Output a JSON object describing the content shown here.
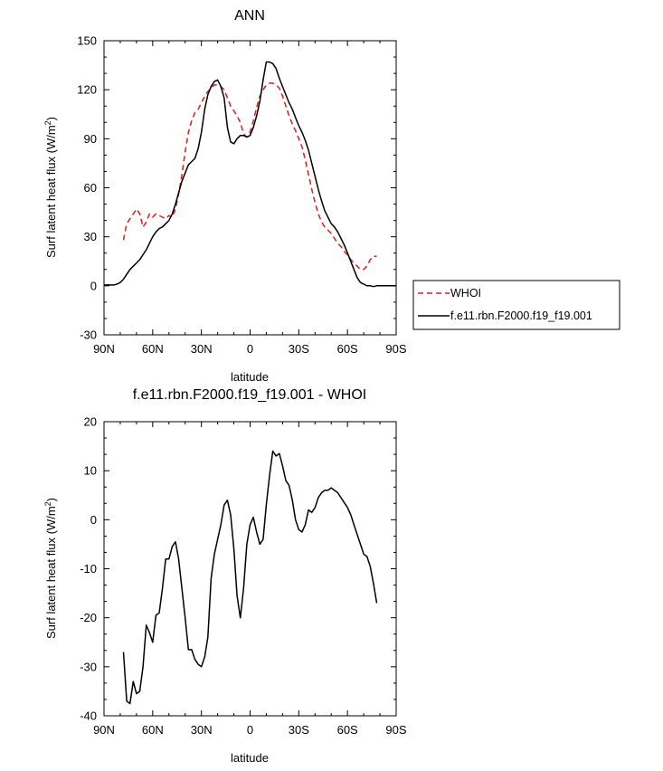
{
  "chart_data": [
    {
      "type": "line",
      "title": "ANN",
      "xlabel": "latitude",
      "ylabel": "Surf latent heat flux (W/m",
      "ylabel_sup": "2",
      "ylabel_tail": ")",
      "xlim": [
        90,
        -90
      ],
      "ylim": [
        -30,
        150
      ],
      "x_ticks": [
        90,
        60,
        30,
        0,
        -30,
        -60,
        -90
      ],
      "x_tick_labels": [
        "90N",
        "60N",
        "30N",
        "0",
        "30S",
        "60S",
        "90S"
      ],
      "y_ticks": [
        -30,
        0,
        30,
        60,
        90,
        120,
        150
      ],
      "y_tick_labels": [
        "-30",
        "0",
        "30",
        "60",
        "90",
        "120",
        "150"
      ],
      "legend": {
        "position": "outside-right",
        "entries": [
          {
            "label": "WHOI",
            "color": "#e41a1c",
            "dash": "dashed"
          },
          {
            "label": "f.e11.rbn.F2000.f19_f19.001",
            "color": "#000000",
            "dash": "solid"
          }
        ]
      },
      "series": [
        {
          "name": "WHOI",
          "color": "#e41a1c",
          "dash": "dashed",
          "x": [
            78,
            76,
            74,
            72,
            70,
            68,
            66,
            64,
            62,
            60,
            58,
            56,
            54,
            52,
            50,
            48,
            46,
            44,
            42,
            40,
            38,
            36,
            34,
            32,
            30,
            28,
            26,
            24,
            22,
            20,
            18,
            16,
            14,
            12,
            10,
            8,
            6,
            4,
            2,
            0,
            -2,
            -4,
            -6,
            -8,
            -10,
            -12,
            -14,
            -16,
            -18,
            -20,
            -22,
            -24,
            -26,
            -28,
            -30,
            -32,
            -34,
            -36,
            -38,
            -40,
            -42,
            -44,
            -46,
            -48,
            -50,
            -52,
            -54,
            -56,
            -58,
            -60,
            -62,
            -64,
            -66,
            -68,
            -70,
            -72,
            -74,
            -76,
            -78
          ],
          "y": [
            28,
            38,
            41,
            44,
            47,
            44,
            36,
            39,
            44,
            42,
            44,
            43,
            42,
            41,
            43,
            42,
            47,
            56,
            68,
            82,
            94,
            101,
            106,
            108,
            112,
            116,
            119,
            121,
            123,
            123,
            122,
            120,
            115,
            110,
            107,
            104,
            100,
            93,
            91,
            94,
            101,
            109,
            116,
            120,
            123,
            124,
            124,
            123,
            121,
            116,
            110,
            104,
            99,
            95,
            90,
            85,
            77,
            68,
            59,
            51,
            44,
            39,
            36,
            34,
            32,
            29,
            26,
            24,
            21,
            19,
            16,
            14,
            12,
            10,
            10,
            12,
            16,
            18,
            18
          ]
        },
        {
          "name": "f.e11.rbn.F2000.f19_f19.001",
          "color": "#000000",
          "dash": "solid",
          "x": [
            90,
            88,
            86,
            84,
            82,
            80,
            78,
            76,
            74,
            72,
            70,
            68,
            66,
            64,
            62,
            60,
            58,
            56,
            54,
            52,
            50,
            48,
            46,
            44,
            42,
            40,
            38,
            36,
            34,
            32,
            30,
            28,
            26,
            24,
            22,
            20,
            18,
            16,
            14,
            12,
            10,
            8,
            6,
            4,
            2,
            0,
            -2,
            -4,
            -6,
            -8,
            -10,
            -12,
            -14,
            -16,
            -18,
            -20,
            -22,
            -24,
            -26,
            -28,
            -30,
            -32,
            -34,
            -36,
            -38,
            -40,
            -42,
            -44,
            -46,
            -48,
            -50,
            -52,
            -54,
            -56,
            -58,
            -60,
            -62,
            -64,
            -66,
            -68,
            -70,
            -72,
            -74,
            -76,
            -78,
            -80,
            -82,
            -84,
            -86,
            -88,
            -90
          ],
          "y": [
            0.5,
            0.5,
            0.5,
            0.5,
            1,
            2,
            4,
            7,
            10,
            12,
            14,
            16,
            19,
            22,
            26,
            30,
            33,
            35,
            36,
            38,
            40,
            44,
            50,
            57,
            64,
            69,
            74,
            76,
            78,
            84,
            94,
            108,
            117,
            122,
            125,
            126,
            122,
            115,
            97,
            88,
            87,
            90,
            92,
            92,
            91,
            92,
            97,
            104,
            113,
            126,
            137,
            137,
            136,
            133,
            127,
            122,
            117,
            112,
            108,
            103,
            98,
            94,
            89,
            83,
            75,
            67,
            59,
            52,
            46,
            42,
            38,
            36,
            33,
            29,
            25,
            20,
            15,
            10,
            5,
            2,
            1,
            0,
            0,
            -0.5,
            0,
            0,
            0,
            0,
            0,
            0,
            0
          ]
        }
      ]
    },
    {
      "type": "line",
      "title": "f.e11.rbn.F2000.f19_f19.001 - WHOI",
      "xlabel": "latitude",
      "ylabel": "Surf latent heat flux (W/m",
      "ylabel_sup": "2",
      "ylabel_tail": ")",
      "xlim": [
        90,
        -90
      ],
      "ylim": [
        -40,
        20
      ],
      "x_ticks": [
        90,
        60,
        30,
        0,
        -30,
        -60,
        -90
      ],
      "x_tick_labels": [
        "90N",
        "60N",
        "30N",
        "0",
        "30S",
        "60S",
        "90S"
      ],
      "y_ticks": [
        -40,
        -30,
        -20,
        -10,
        0,
        10,
        20
      ],
      "y_tick_labels": [
        "-40",
        "-30",
        "-20",
        "-10",
        "0",
        "10",
        "20"
      ],
      "series": [
        {
          "name": "f.e11.rbn.F2000.f19_f19.001 - WHOI",
          "color": "#000000",
          "dash": "solid",
          "x": [
            78,
            76,
            74,
            72,
            70,
            68,
            66,
            64,
            62,
            60,
            58,
            56,
            54,
            52,
            50,
            48,
            46,
            44,
            42,
            40,
            38,
            36,
            34,
            32,
            30,
            28,
            26,
            24,
            22,
            20,
            18,
            16,
            14,
            12,
            10,
            8,
            6,
            4,
            2,
            0,
            -2,
            -4,
            -6,
            -8,
            -10,
            -12,
            -14,
            -16,
            -18,
            -20,
            -22,
            -24,
            -26,
            -28,
            -30,
            -32,
            -34,
            -36,
            -38,
            -40,
            -42,
            -44,
            -46,
            -48,
            -50,
            -52,
            -54,
            -56,
            -58,
            -60,
            -62,
            -64,
            -66,
            -68,
            -70,
            -72,
            -74,
            -76,
            -78
          ],
          "y": [
            -27,
            -37,
            -37.5,
            -33,
            -35.5,
            -35,
            -30,
            -21.5,
            -23,
            -25,
            -19.5,
            -19,
            -14,
            -8,
            -8,
            -5.5,
            -4.5,
            -8,
            -14,
            -20,
            -26.5,
            -26.5,
            -28.5,
            -29.5,
            -30,
            -28,
            -24,
            -12,
            -7,
            -4,
            -1,
            3,
            4,
            1,
            -6,
            -15.5,
            -20,
            -14,
            -5,
            -1,
            0.5,
            -2.5,
            -5,
            -4,
            3,
            9,
            14,
            13,
            13.5,
            11,
            8,
            7,
            4,
            0,
            -2,
            -2.5,
            -1,
            2,
            1.5,
            2.5,
            4.5,
            5.5,
            6,
            6,
            6.5,
            6,
            5.5,
            4.5,
            3.5,
            2.5,
            1,
            -1,
            -3,
            -5,
            -7,
            -7.5,
            -9.5,
            -13,
            -17
          ]
        }
      ]
    }
  ]
}
